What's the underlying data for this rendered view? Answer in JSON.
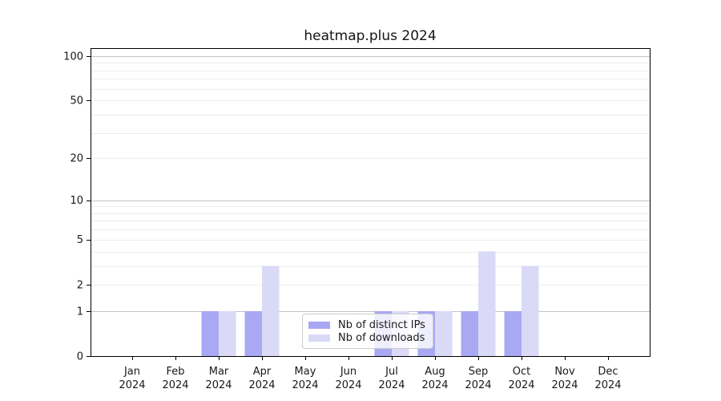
{
  "chart_data": {
    "type": "bar",
    "title": "heatmap.plus 2024",
    "xlabel": "",
    "ylabel": "",
    "scale": "log1p",
    "ylim": [
      0,
      113
    ],
    "grid": true,
    "y_tick_labels": [
      0,
      1,
      2,
      5,
      10,
      20,
      50,
      100
    ],
    "y_major_gridlines": [
      1,
      10,
      100
    ],
    "y_minor_gridlines": [
      2,
      3,
      4,
      5,
      6,
      7,
      8,
      9,
      20,
      30,
      40,
      50,
      60,
      70,
      80,
      90
    ],
    "categories": [
      "Jan",
      "Feb",
      "Mar",
      "Apr",
      "May",
      "Jun",
      "Jul",
      "Aug",
      "Sep",
      "Oct",
      "Nov",
      "Dec"
    ],
    "year_label": "2024",
    "series": [
      {
        "name": "Nb of distinct IPs",
        "color": "#a8a8f3",
        "values": [
          0,
          0,
          1,
          1,
          0,
          0,
          1,
          1,
          1,
          1,
          0,
          0
        ]
      },
      {
        "name": "Nb of downloads",
        "color": "#dadaf7",
        "values": [
          0,
          0,
          1,
          3,
          0,
          0,
          1,
          1,
          4,
          3,
          0,
          0
        ]
      }
    ],
    "legend": {
      "position": "inside-bottom-center",
      "entries": [
        "Nb of distinct IPs",
        "Nb of downloads"
      ]
    },
    "colors": {
      "grid_major": "#c3c3c3",
      "grid_minor": "#ededed",
      "axis": "#000000",
      "text": "#191919",
      "background": "#ffffff"
    }
  }
}
